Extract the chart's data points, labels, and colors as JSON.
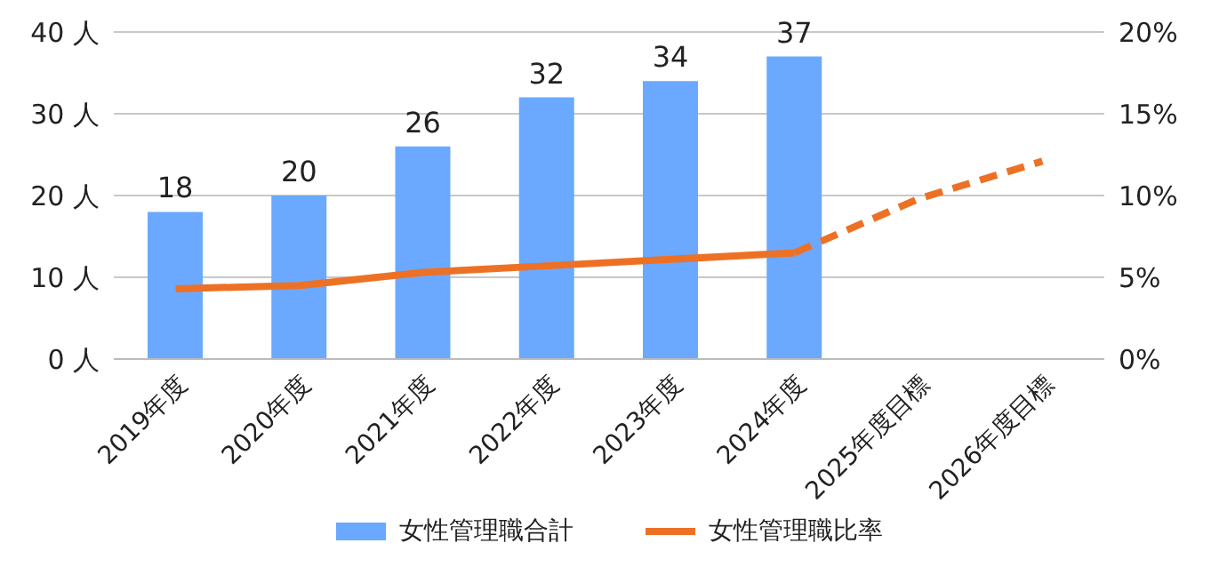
{
  "chart_data": {
    "type": "bar",
    "categories": [
      "2019年度",
      "2020年度",
      "2021年度",
      "2022年度",
      "2023年度",
      "2024年度",
      "2025年度目標",
      "2026年度目標"
    ],
    "series": [
      {
        "name": "女性管理職合計",
        "color": "#6aa9ff",
        "values": [
          18,
          20,
          26,
          32,
          34,
          37,
          null,
          null
        ],
        "value_labels": [
          "18",
          "20",
          "26",
          "32",
          "34",
          "37",
          null,
          null
        ]
      },
      {
        "name": "女性管理職比率",
        "type": "line",
        "axis": "y2",
        "color": "#ed7125",
        "line_style": "solid",
        "values": [
          4.3,
          4.5,
          5.3,
          5.7,
          6.1,
          6.5,
          null,
          null
        ]
      },
      {
        "type": "line",
        "axis": "y2",
        "color": "#ed7125",
        "line_style": "dashed",
        "values": [
          null,
          null,
          null,
          null,
          null,
          6.5,
          9.8,
          12.1
        ]
      }
    ],
    "ylim": [
      0,
      40
    ],
    "yticks": [
      {
        "value": 0,
        "label": "0 人"
      },
      {
        "value": 10,
        "label": "10 人"
      },
      {
        "value": 20,
        "label": "20 人"
      },
      {
        "value": 30,
        "label": "30 人"
      },
      {
        "value": 40,
        "label": "40 人"
      }
    ],
    "y2lim": [
      0,
      20
    ],
    "y2ticks": [
      {
        "value": 0,
        "label": "0%"
      },
      {
        "value": 5,
        "label": "5%"
      },
      {
        "value": 10,
        "label": "10%"
      },
      {
        "value": 15,
        "label": "15%"
      },
      {
        "value": 20,
        "label": "20%"
      }
    ],
    "grid": "y",
    "legend": "bottom",
    "marker": "none"
  }
}
